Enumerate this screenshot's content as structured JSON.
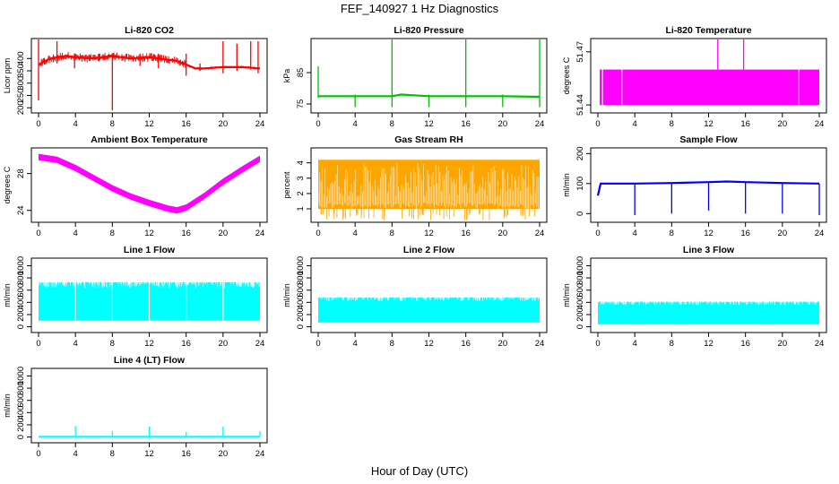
{
  "title": "FEF_140927  1 Hz Diagnostics",
  "x_axis_label": "Hour of Day (UTC)",
  "chart_data": [
    {
      "type": "line",
      "title": "Li-820 CO2",
      "ylabel": "Licor ppm",
      "color": "#ff0000",
      "xlim": [
        0,
        24
      ],
      "ylim": [
        190,
        470
      ],
      "x_ticks": [
        0,
        4,
        8,
        12,
        16,
        20,
        24
      ],
      "y_ticks": [
        200,
        250,
        300,
        350,
        400
      ],
      "series": [
        {
          "x": [
            0,
            1,
            2,
            3,
            4,
            6,
            8,
            10,
            12,
            14,
            15,
            16,
            17,
            18,
            20,
            22,
            24
          ],
          "values": [
            375,
            395,
            405,
            410,
            405,
            400,
            410,
            400,
            405,
            395,
            390,
            375,
            360,
            360,
            365,
            365,
            360
          ]
        }
      ],
      "spikes": [
        {
          "x": 0.0,
          "low": 230,
          "high": 480
        },
        {
          "x": 2.0,
          "low": 380,
          "high": 470
        },
        {
          "x": 3.9,
          "low": 360,
          "high": 420
        },
        {
          "x": 8.0,
          "low": 190,
          "high": 420
        },
        {
          "x": 11.0,
          "low": 370,
          "high": 420
        },
        {
          "x": 13.0,
          "low": 360,
          "high": 420
        },
        {
          "x": 16.0,
          "low": 330,
          "high": 420
        },
        {
          "x": 17.5,
          "low": 350,
          "high": 380
        },
        {
          "x": 20.0,
          "low": 340,
          "high": 470
        },
        {
          "x": 21.5,
          "low": 350,
          "high": 460
        },
        {
          "x": 23.0,
          "low": 355,
          "high": 470
        },
        {
          "x": 23.8,
          "low": 340,
          "high": 470
        }
      ]
    },
    {
      "type": "line",
      "title": "Li-820 Pressure",
      "ylabel": "kPa",
      "color": "#00c000",
      "xlim": [
        0,
        24
      ],
      "ylim": [
        73,
        95
      ],
      "x_ticks": [
        0,
        4,
        8,
        12,
        16,
        20,
        24
      ],
      "y_ticks": [
        75,
        85
      ],
      "series": [
        {
          "x": [
            0,
            4,
            8,
            9,
            12,
            16,
            20,
            24
          ],
          "values": [
            77.5,
            77.5,
            77.5,
            78,
            77.5,
            77.5,
            77.5,
            77.3
          ]
        }
      ],
      "spikes": [
        {
          "x": 0.0,
          "low": 77,
          "high": 87
        },
        {
          "x": 4.0,
          "low": 74,
          "high": 78
        },
        {
          "x": 8.0,
          "low": 74,
          "high": 96
        },
        {
          "x": 12.0,
          "low": 74,
          "high": 78
        },
        {
          "x": 16.0,
          "low": 74,
          "high": 96
        },
        {
          "x": 20.0,
          "low": 74,
          "high": 78
        },
        {
          "x": 24.0,
          "low": 74,
          "high": 96
        }
      ]
    },
    {
      "type": "area",
      "title": "Li-820 Temperature",
      "ylabel": "degrees C",
      "color": "#ff00ff",
      "xlim": [
        0,
        24
      ],
      "ylim": [
        51.437,
        51.476
      ],
      "x_ticks": [
        0,
        4,
        8,
        12,
        16,
        20,
        24
      ],
      "y_ticks": [
        51.44,
        51.47
      ],
      "band": {
        "x_start": 0.2,
        "x_end": 24,
        "low": 51.44,
        "high": 51.46
      },
      "spikes": [
        {
          "x": 13.0,
          "low": 51.46,
          "high": 51.48
        },
        {
          "x": 15.8,
          "low": 51.46,
          "high": 51.48
        }
      ],
      "gaps_x": [
        0.5,
        2.6,
        21.8
      ]
    },
    {
      "type": "line",
      "title": "Ambient Box Temperature",
      "ylabel": "degrees C",
      "color": "#ff00ff",
      "xlim": [
        0,
        24
      ],
      "ylim": [
        23,
        30.5
      ],
      "x_ticks": [
        0,
        4,
        8,
        12,
        16,
        20,
        24
      ],
      "y_ticks": [
        24,
        28
      ],
      "series": [
        {
          "x": [
            0,
            2,
            4,
            6,
            8,
            10,
            12,
            14,
            15,
            16,
            18,
            20,
            22,
            24
          ],
          "values": [
            29.8,
            29.5,
            28.6,
            27.5,
            26.4,
            25.5,
            24.8,
            24.2,
            24.0,
            24.3,
            25.6,
            27.1,
            28.4,
            29.6
          ]
        }
      ],
      "band_width": 0.7
    },
    {
      "type": "area",
      "title": "Gas Stream RH",
      "ylabel": "percent",
      "color": "#ffa500",
      "xlim": [
        0,
        24
      ],
      "ylim": [
        0.3,
        4.8
      ],
      "x_ticks": [
        0,
        4,
        8,
        12,
        16,
        20,
        24
      ],
      "y_ticks": [
        1,
        2,
        3,
        4
      ],
      "band": {
        "x_start": 0,
        "x_end": 24,
        "low": 1.0,
        "high": 4.2
      }
    },
    {
      "type": "line",
      "title": "Sample Flow",
      "ylabel": "ml/min",
      "color": "#0000ff",
      "xlim": [
        0,
        24
      ],
      "ylim": [
        -20,
        210
      ],
      "x_ticks": [
        0,
        4,
        8,
        12,
        16,
        20,
        24
      ],
      "y_ticks": [
        0,
        100,
        200
      ],
      "series": [
        {
          "x": [
            0,
            0.3,
            4,
            8,
            12,
            14,
            16,
            20,
            24
          ],
          "values": [
            60,
            100,
            100,
            102,
            105,
            107,
            105,
            102,
            100
          ]
        }
      ],
      "spikes": [
        {
          "x": 4.0,
          "low": -5,
          "high": 100
        },
        {
          "x": 8.0,
          "low": 0,
          "high": 100
        },
        {
          "x": 12.0,
          "low": 10,
          "high": 105
        },
        {
          "x": 16.0,
          "low": 0,
          "high": 105
        },
        {
          "x": 20.0,
          "low": 0,
          "high": 102
        },
        {
          "x": 24.0,
          "low": -5,
          "high": 100
        }
      ]
    },
    {
      "type": "area",
      "title": "Line 1 Flow",
      "ylabel": "ml/min",
      "color": "#00ffff",
      "xlim": [
        0,
        24
      ],
      "ylim": [
        -50,
        1080
      ],
      "x_ticks": [
        0,
        4,
        8,
        12,
        16,
        20,
        24
      ],
      "y_ticks": [
        0,
        200,
        400,
        600,
        800,
        1000
      ],
      "band": {
        "x_start": 0,
        "x_end": 24,
        "low": 100,
        "high": 730
      },
      "gaps_x": [
        4.0,
        8.0,
        12.0,
        16.0,
        20.0
      ]
    },
    {
      "type": "area",
      "title": "Line 2 Flow",
      "ylabel": "ml/min",
      "color": "#00ffff",
      "xlim": [
        0,
        24
      ],
      "ylim": [
        -50,
        1080
      ],
      "x_ticks": [
        0,
        4,
        8,
        12,
        16,
        20,
        24
      ],
      "y_ticks": [
        0,
        200,
        400,
        600,
        800,
        1000
      ],
      "band": {
        "x_start": 0,
        "x_end": 24,
        "low": 70,
        "high": 480
      }
    },
    {
      "type": "area",
      "title": "Line 3 Flow",
      "ylabel": "ml/min",
      "color": "#00ffff",
      "xlim": [
        0,
        24
      ],
      "ylim": [
        -50,
        1080
      ],
      "x_ticks": [
        0,
        4,
        8,
        12,
        16,
        20,
        24
      ],
      "y_ticks": [
        0,
        200,
        400,
        600,
        800,
        1000
      ],
      "band": {
        "x_start": 0,
        "x_end": 24,
        "low": 40,
        "high": 410
      }
    },
    {
      "type": "line",
      "title": "Line 4 (LT) Flow",
      "ylabel": "ml/min",
      "color": "#00ffff",
      "xlim": [
        0,
        24
      ],
      "ylim": [
        -50,
        1080
      ],
      "x_ticks": [
        0,
        4,
        8,
        12,
        16,
        20,
        24
      ],
      "y_ticks": [
        0,
        200,
        400,
        600,
        800,
        1000
      ],
      "series": [
        {
          "x": [
            0,
            24
          ],
          "values": [
            5,
            5
          ]
        }
      ],
      "spikes": [
        {
          "x": 4.0,
          "low": 0,
          "high": 180
        },
        {
          "x": 8.0,
          "low": 0,
          "high": 100
        },
        {
          "x": 12.0,
          "low": 0,
          "high": 170
        },
        {
          "x": 16.0,
          "low": 0,
          "high": 90
        },
        {
          "x": 20.0,
          "low": 0,
          "high": 170
        },
        {
          "x": 24.0,
          "low": 0,
          "high": 100
        }
      ]
    }
  ]
}
